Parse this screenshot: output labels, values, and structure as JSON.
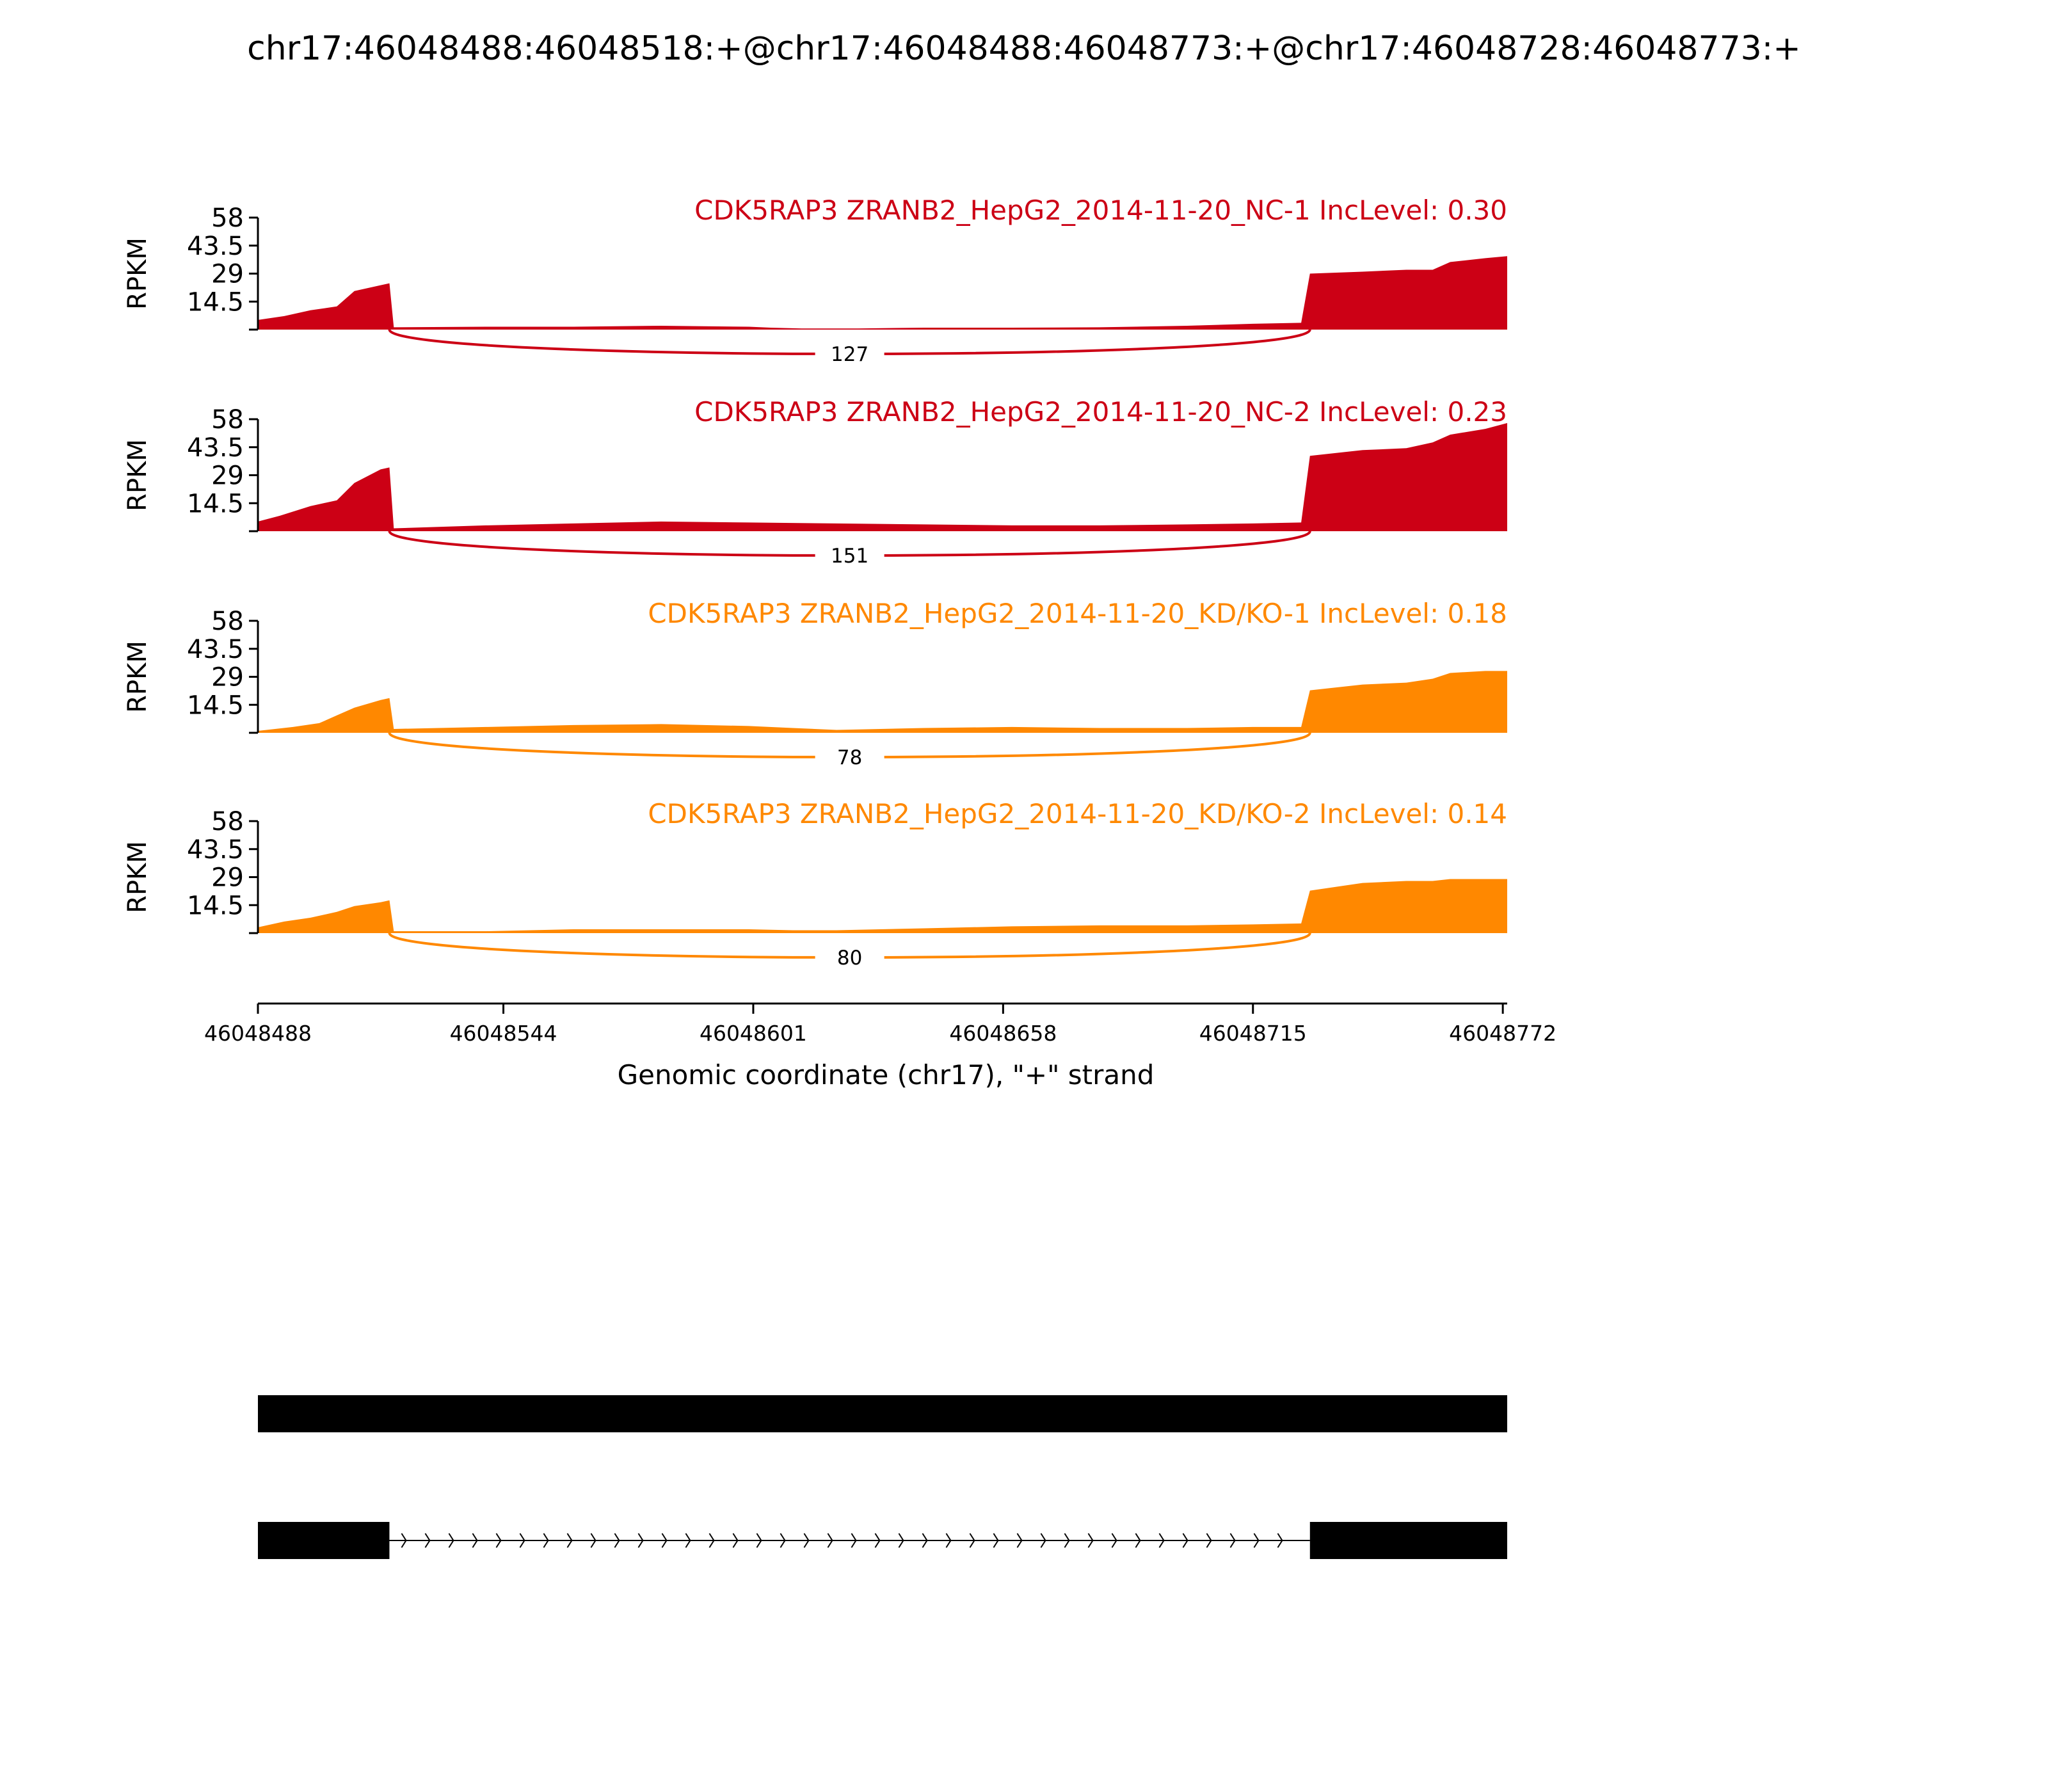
{
  "title": "chr17:46048488:46048518:+@chr17:46048488:46048773:+@chr17:46048728:46048773:+",
  "colors": {
    "nc": "#cc0015",
    "kd": "#ff8800",
    "axis": "#000000",
    "text": "#000000"
  },
  "x_axis": {
    "label": "Genomic coordinate (chr17), \"+\" strand",
    "ticks": [
      "46048488",
      "46048544",
      "46048601",
      "46048658",
      "46048715",
      "46048772"
    ],
    "range": [
      46048488,
      46048773
    ]
  },
  "chart_data": {
    "type": "area",
    "y_label": "RPKM",
    "y_ticks": [
      "58",
      "43.5",
      "29",
      "14.5"
    ],
    "ylim": [
      0,
      58
    ],
    "exon1": [
      46048488,
      46048518
    ],
    "exon2": [
      46048728,
      46048773
    ],
    "panels": [
      {
        "label": "CDK5RAP3 ZRANB2_HepG2_2014-11-20_NC-1 IncLevel: 0.30",
        "color": "#cc0015",
        "junction_count": "127",
        "coverage": [
          [
            46048488,
            5
          ],
          [
            46048494,
            7
          ],
          [
            46048500,
            10
          ],
          [
            46048506,
            12
          ],
          [
            46048510,
            20
          ],
          [
            46048516,
            23
          ],
          [
            46048518,
            24
          ],
          [
            46048519,
            1.2
          ],
          [
            46048540,
            1.5
          ],
          [
            46048560,
            1.5
          ],
          [
            46048580,
            2
          ],
          [
            46048600,
            1.5
          ],
          [
            46048605,
            1
          ],
          [
            46048612,
            0.6
          ],
          [
            46048625,
            0.6
          ],
          [
            46048640,
            1
          ],
          [
            46048660,
            1
          ],
          [
            46048680,
            1.2
          ],
          [
            46048700,
            2
          ],
          [
            46048715,
            3
          ],
          [
            46048726,
            3.5
          ],
          [
            46048728,
            29
          ],
          [
            46048740,
            30
          ],
          [
            46048750,
            31
          ],
          [
            46048756,
            31
          ],
          [
            46048760,
            35
          ],
          [
            46048768,
            37
          ],
          [
            46048773,
            38
          ]
        ]
      },
      {
        "label": "CDK5RAP3 ZRANB2_HepG2_2014-11-20_NC-2 IncLevel: 0.23",
        "color": "#cc0015",
        "junction_count": "151",
        "coverage": [
          [
            46048488,
            5
          ],
          [
            46048493,
            8
          ],
          [
            46048500,
            13
          ],
          [
            46048506,
            16
          ],
          [
            46048510,
            25
          ],
          [
            46048516,
            32
          ],
          [
            46048518,
            33
          ],
          [
            46048519,
            1.5
          ],
          [
            46048540,
            3
          ],
          [
            46048560,
            4
          ],
          [
            46048580,
            5
          ],
          [
            46048600,
            4.5
          ],
          [
            46048620,
            4
          ],
          [
            46048640,
            3.5
          ],
          [
            46048660,
            3
          ],
          [
            46048680,
            3
          ],
          [
            46048700,
            3.5
          ],
          [
            46048715,
            4
          ],
          [
            46048726,
            4.5
          ],
          [
            46048728,
            39
          ],
          [
            46048740,
            42
          ],
          [
            46048750,
            43
          ],
          [
            46048756,
            46
          ],
          [
            46048760,
            50
          ],
          [
            46048768,
            53
          ],
          [
            46048773,
            56
          ]
        ]
      },
      {
        "label": "CDK5RAP3 ZRANB2_HepG2_2014-11-20_KD/KO-1 IncLevel: 0.18",
        "color": "#ff8800",
        "junction_count": "78",
        "coverage": [
          [
            46048488,
            1
          ],
          [
            46048496,
            3
          ],
          [
            46048502,
            5
          ],
          [
            46048506,
            9
          ],
          [
            46048510,
            13
          ],
          [
            46048516,
            17
          ],
          [
            46048518,
            18
          ],
          [
            46048519,
            2
          ],
          [
            46048540,
            3
          ],
          [
            46048560,
            4
          ],
          [
            46048580,
            4.5
          ],
          [
            46048600,
            3.5
          ],
          [
            46048610,
            2.5
          ],
          [
            46048620,
            1.5
          ],
          [
            46048630,
            2
          ],
          [
            46048640,
            2.5
          ],
          [
            46048660,
            3
          ],
          [
            46048680,
            2.5
          ],
          [
            46048700,
            2.5
          ],
          [
            46048715,
            3
          ],
          [
            46048726,
            3
          ],
          [
            46048728,
            22
          ],
          [
            46048740,
            25
          ],
          [
            46048750,
            26
          ],
          [
            46048756,
            28
          ],
          [
            46048760,
            31
          ],
          [
            46048768,
            32
          ],
          [
            46048773,
            32
          ]
        ]
      },
      {
        "label": "CDK5RAP3 ZRANB2_HepG2_2014-11-20_KD/KO-2 IncLevel: 0.14",
        "color": "#ff8800",
        "junction_count": "80",
        "coverage": [
          [
            46048488,
            3
          ],
          [
            46048494,
            6
          ],
          [
            46048500,
            8
          ],
          [
            46048506,
            11
          ],
          [
            46048510,
            14
          ],
          [
            46048516,
            16
          ],
          [
            46048518,
            17
          ],
          [
            46048519,
            1
          ],
          [
            46048540,
            1
          ],
          [
            46048560,
            2
          ],
          [
            46048580,
            2
          ],
          [
            46048600,
            2
          ],
          [
            46048610,
            1.5
          ],
          [
            46048620,
            1.5
          ],
          [
            46048640,
            2.5
          ],
          [
            46048660,
            3.5
          ],
          [
            46048680,
            4
          ],
          [
            46048700,
            4
          ],
          [
            46048715,
            4.5
          ],
          [
            46048726,
            5
          ],
          [
            46048728,
            22
          ],
          [
            46048740,
            26
          ],
          [
            46048750,
            27
          ],
          [
            46048756,
            27
          ],
          [
            46048760,
            28
          ],
          [
            46048768,
            28
          ],
          [
            46048773,
            28
          ]
        ]
      }
    ]
  }
}
